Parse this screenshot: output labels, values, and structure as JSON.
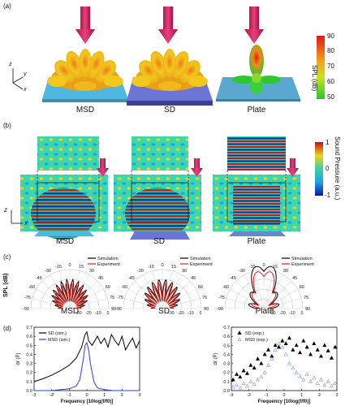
{
  "panel_labels": {
    "a": "(a)",
    "b": "(b)",
    "c": "(c)",
    "d": "(d)"
  },
  "row_a": {
    "captions": [
      "MSD",
      "SD",
      "Plate"
    ],
    "axes": {
      "z": "z",
      "y": "y",
      "x": "x"
    },
    "colorbar": {
      "title": "SPL (dB)",
      "ticks": [
        "90",
        "80",
        "70",
        "60",
        "50"
      ]
    }
  },
  "row_b": {
    "captions": [
      "MSD",
      "SD",
      "Plate"
    ],
    "axes": {
      "z": "z",
      "x": "x"
    },
    "colorbar": {
      "title": "Sound Pressure (a.u.)",
      "ticks": [
        "1",
        "0",
        "-1"
      ]
    }
  },
  "row_c": {
    "ylabel": "SPL (dB)",
    "captions": [
      "MSD",
      "SD",
      "Plate"
    ],
    "legend": [
      "Simulation",
      "Experiment"
    ],
    "angle_labels": {
      "top": "0",
      "l15": "-15",
      "r15": "15",
      "l30": "-30",
      "r30": "30",
      "l45": "-45",
      "r45": "45",
      "l60": "-60",
      "r60": "60",
      "l75": "-75",
      "r75": "75",
      "l90": "-90",
      "r90": "90"
    },
    "radial_labels": [
      "0",
      "-10",
      "-20",
      "-30"
    ],
    "colors": {
      "simulation": "#000000",
      "experiment": "#e0201b"
    }
  },
  "chart_data": [
    {
      "type": "line",
      "xlabel": "Frequency [10log(f/f0)]",
      "ylabel": "dr (P)",
      "xlim": [
        -3,
        3
      ],
      "ylim": [
        0,
        0.7
      ],
      "xticks": [
        "-3",
        "-2",
        "-1",
        "0",
        "1",
        "2",
        "3"
      ],
      "yticks": [
        "0.0",
        "0.1",
        "0.2",
        "0.3",
        "0.4",
        "0.5",
        "0.6",
        "0.7"
      ],
      "series": [
        {
          "name": "SD (sim.)",
          "color": "#000000",
          "x": [
            -3,
            -2.5,
            -2,
            -1.5,
            -1,
            -0.6,
            -0.3,
            -0.1,
            0,
            0.1,
            0.3,
            0.6,
            0.8,
            1.0,
            1.2,
            1.4,
            1.6,
            1.8,
            2.0,
            2.2,
            2.4,
            2.6,
            2.8,
            3.0
          ],
          "y": [
            0.1,
            0.13,
            0.17,
            0.22,
            0.28,
            0.36,
            0.48,
            0.62,
            0.65,
            0.55,
            0.5,
            0.6,
            0.52,
            0.58,
            0.48,
            0.62,
            0.55,
            0.5,
            0.6,
            0.45,
            0.52,
            0.58,
            0.47,
            0.55
          ]
        },
        {
          "name": "MSD (sim.)",
          "color": "#2b3fd1",
          "x": [
            -3,
            -2,
            -1.5,
            -1,
            -0.6,
            -0.4,
            -0.2,
            -0.1,
            0,
            0.1,
            0.2,
            0.4,
            0.6,
            1.0,
            1.5,
            2,
            3
          ],
          "y": [
            0.0,
            0.0,
            0.01,
            0.02,
            0.05,
            0.12,
            0.35,
            0.5,
            0.53,
            0.45,
            0.3,
            0.1,
            0.03,
            0.01,
            0.0,
            0.0,
            0.0
          ]
        }
      ]
    },
    {
      "type": "scatter",
      "xlabel": "Frequency [10log(f/f0)]",
      "ylabel": "dr (P)",
      "xlim": [
        -3,
        3
      ],
      "ylim": [
        0,
        0.7
      ],
      "xticks": [
        "-3",
        "-2",
        "-1",
        "0",
        "1",
        "2",
        "3"
      ],
      "yticks": [
        "0.0",
        "0.1",
        "0.2",
        "0.3",
        "0.4",
        "0.5",
        "0.6",
        "0.7"
      ],
      "series": [
        {
          "name": "SD (exp.)",
          "color": "#000000",
          "marker": "filled-triangle",
          "x": [
            -2.9,
            -2.7,
            -2.5,
            -2.3,
            -2.1,
            -1.9,
            -1.7,
            -1.5,
            -1.3,
            -1.1,
            -0.9,
            -0.7,
            -0.5,
            -0.3,
            -0.1,
            0.1,
            0.3,
            0.5,
            0.7,
            0.9,
            1.1,
            1.3,
            1.5,
            1.7,
            1.9,
            2.1,
            2.3,
            2.5,
            2.7,
            2.9
          ],
          "y": [
            0.12,
            0.18,
            0.15,
            0.22,
            0.19,
            0.28,
            0.25,
            0.35,
            0.3,
            0.4,
            0.45,
            0.38,
            0.5,
            0.48,
            0.55,
            0.52,
            0.58,
            0.45,
            0.5,
            0.42,
            0.55,
            0.48,
            0.4,
            0.52,
            0.45,
            0.38,
            0.5,
            0.44,
            0.36,
            0.48
          ]
        },
        {
          "name": "MSD (exp.)",
          "color": "#8896e0",
          "marker": "open-triangle",
          "x": [
            -2.9,
            -2.7,
            -2.5,
            -2.3,
            -2.1,
            -1.9,
            -1.7,
            -1.5,
            -1.3,
            -1.1,
            -0.9,
            -0.7,
            -0.5,
            -0.3,
            -0.1,
            0.1,
            0.3,
            0.5,
            0.7,
            0.9,
            1.1,
            1.3,
            1.5,
            1.7,
            1.9,
            2.1,
            2.3,
            2.5,
            2.7,
            2.9
          ],
          "y": [
            0.04,
            0.06,
            0.03,
            0.08,
            0.05,
            0.1,
            0.07,
            0.12,
            0.15,
            0.2,
            0.28,
            0.35,
            0.45,
            0.52,
            0.48,
            0.4,
            0.3,
            0.25,
            0.2,
            0.15,
            0.12,
            0.18,
            0.1,
            0.14,
            0.08,
            0.12,
            0.06,
            0.1,
            0.05,
            0.08
          ]
        }
      ]
    }
  ]
}
